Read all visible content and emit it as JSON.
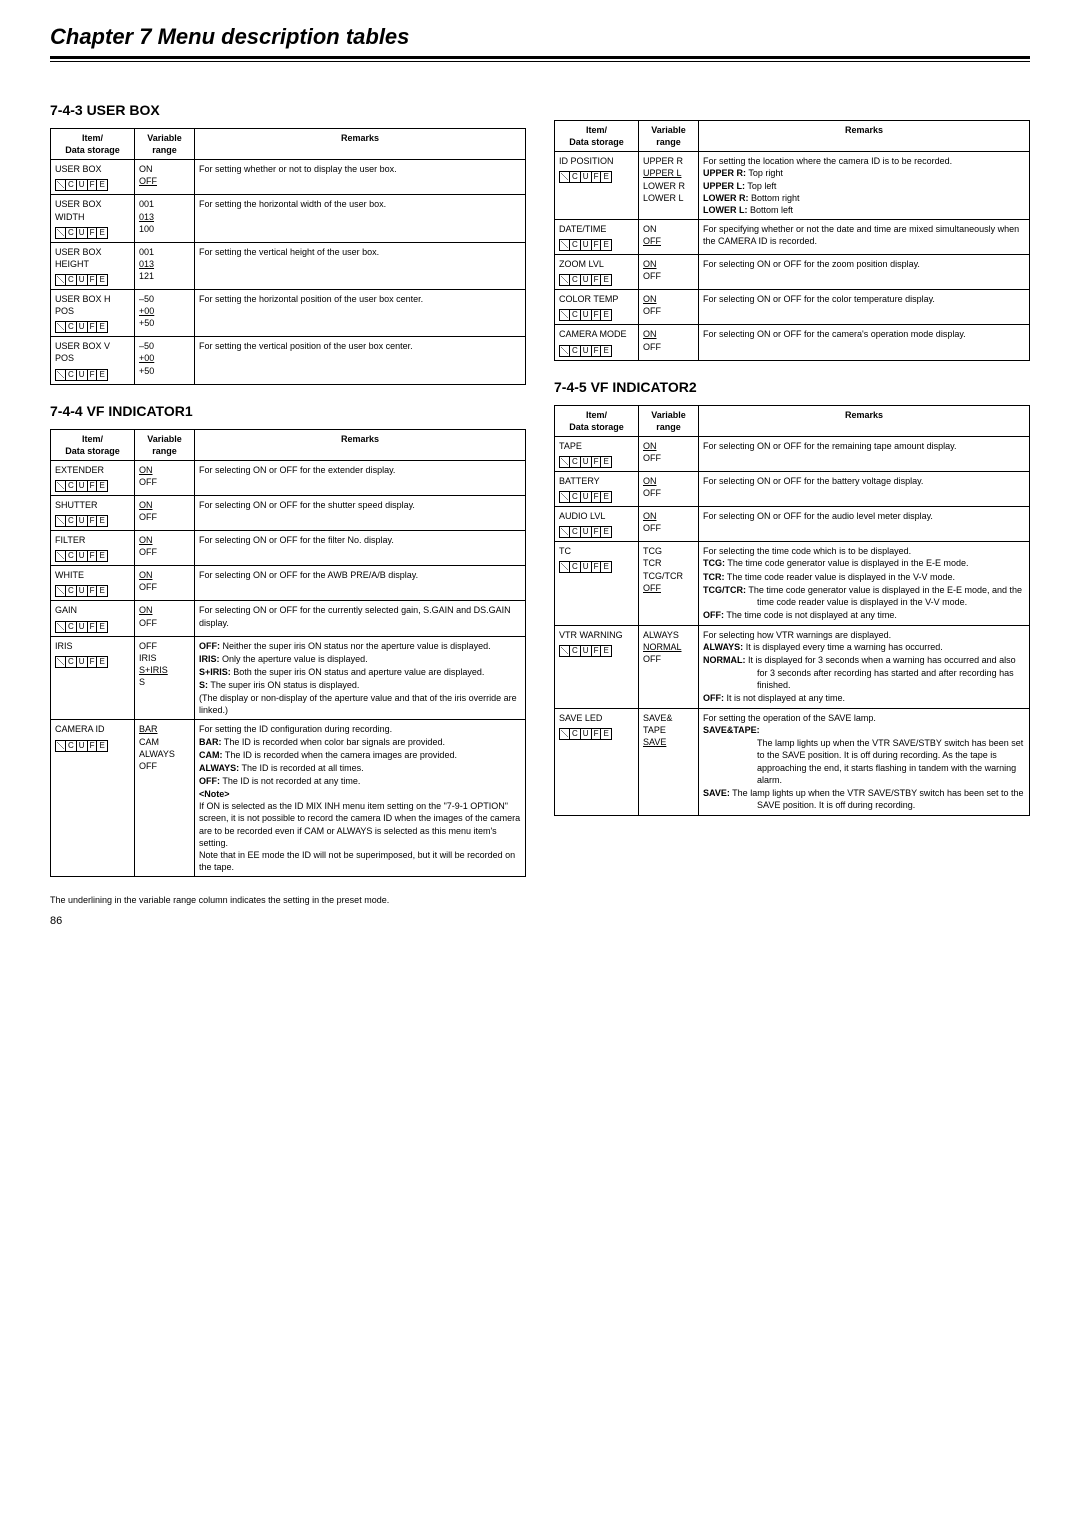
{
  "chapter_title": "Chapter 7  Menu description tables",
  "footnote": "The underlining in the variable range column indicates the setting in the preset mode.",
  "page_number": "86",
  "headers": {
    "item": "Item/\nData storage",
    "variable": "Variable\nrange",
    "remarks": "Remarks"
  },
  "s743": {
    "title": "7-4-3 USER BOX",
    "rows": [
      {
        "item": "USER BOX",
        "cufe": true,
        "var": "ON\n<u>OFF</u>",
        "remarks": "For setting whether or not to display the user box."
      },
      {
        "item": "USER BOX WIDTH",
        "cufe": true,
        "var": "001\n<u>013</u>\n100",
        "remarks": "For setting the horizontal width of the user box."
      },
      {
        "item": "USER BOX HEIGHT",
        "cufe": true,
        "var": "001\n<u>013</u>\n121",
        "remarks": "For setting the vertical height of the user box."
      },
      {
        "item": "USER BOX H POS",
        "cufe": true,
        "var": "–50\n<u>+00</u>\n+50",
        "remarks": "For setting the horizontal position of the user box center."
      },
      {
        "item": "USER BOX V POS",
        "cufe": true,
        "var": "–50\n<u>+00</u>\n+50",
        "remarks": "For setting the vertical position of the user box center."
      }
    ]
  },
  "s744": {
    "title": "7-4-4 VF INDICATOR1",
    "rows": [
      {
        "item": "EXTENDER",
        "cufe": true,
        "var": "<u>ON</u>\nOFF",
        "remarks": "For selecting ON or OFF for the extender display."
      },
      {
        "item": "SHUTTER",
        "cufe": true,
        "var": "<u>ON</u>\nOFF",
        "remarks": "For selecting ON or OFF for the shutter speed display."
      },
      {
        "item": "FILTER",
        "cufe": true,
        "var": "<u>ON</u>\nOFF",
        "remarks": "For selecting ON or OFF for the filter No. display."
      },
      {
        "item": "WHITE",
        "cufe": true,
        "var": "<u>ON</u>\nOFF",
        "remarks": "For selecting ON or OFF for the AWB PRE/A/B display."
      },
      {
        "item": "GAIN",
        "cufe": true,
        "var": "<u>ON</u>\nOFF",
        "remarks": "For selecting ON or OFF for the currently selected gain, S.GAIN and DS.GAIN display."
      },
      {
        "item": "IRIS",
        "cufe": true,
        "var": "OFF\nIRIS\n<u>S+IRIS</u>\nS",
        "remarks_defs": [
          {
            "k": "OFF:",
            "v": "Neither the super iris ON status nor the aperture value is displayed."
          },
          {
            "k": "IRIS:",
            "v": "Only the aperture value is displayed."
          },
          {
            "k": "S+IRIS:",
            "v": "Both the super iris ON status and aperture value are displayed."
          },
          {
            "k": "S:",
            "v": "The super iris ON status is displayed."
          }
        ],
        "remarks_tail": "(The display or non-display of the aperture value and that of the iris override are linked.)"
      },
      {
        "item": "CAMERA ID",
        "cufe": true,
        "var": "<u>BAR</u>\nCAM\nALWAYS\nOFF",
        "remarks_lead": "For setting the ID configuration during recording.",
        "remarks_defs": [
          {
            "k": "BAR:",
            "v": "The ID is recorded when color bar signals are provided."
          },
          {
            "k": "CAM:",
            "v": "The ID is recorded when the camera images are provided."
          },
          {
            "k": "ALWAYS:",
            "v": "The ID is recorded at all times."
          },
          {
            "k": "OFF:",
            "v": "The ID is not recorded at any time."
          }
        ],
        "remarks_note": "<b>&lt;Note&gt;</b>\nIf ON is selected as the ID MIX INH menu item setting on the \"7-9-1 OPTION\" screen, it is not possible to record the camera ID when the images of the camera are to be recorded even if CAM or ALWAYS is selected as this menu item's setting.\nNote that in EE mode the ID will not be superimposed, but it will be recorded on the tape."
      }
    ]
  },
  "s744b": {
    "rows": [
      {
        "item": "ID POSITION",
        "cufe": true,
        "var": "UPPER R\n<u>UPPER L</u>\nLOWER R\nLOWER L",
        "remarks_lead": "For setting the location where the camera ID is to be recorded.",
        "remarks_defs2": [
          {
            "k": "UPPER R:",
            "v": "Top right"
          },
          {
            "k": "UPPER L:",
            "v": "Top left"
          },
          {
            "k": "LOWER R:",
            "v": "Bottom right"
          },
          {
            "k": "LOWER L:",
            "v": "Bottom left"
          }
        ]
      },
      {
        "item": "DATE/TIME",
        "cufe": true,
        "var": "ON\n<u>OFF</u>",
        "remarks": "For specifying whether or not the date and time are mixed simultaneously when the CAMERA ID is recorded."
      },
      {
        "item": "ZOOM LVL",
        "cufe": true,
        "var": "<u>ON</u>\nOFF",
        "remarks": "For selecting ON or OFF for the zoom position display."
      },
      {
        "item": "COLOR TEMP",
        "cufe": true,
        "var": "<u>ON</u>\nOFF",
        "remarks": "For selecting ON or OFF for the color temperature display."
      },
      {
        "item": "CAMERA MODE",
        "cufe": true,
        "var": "<u>ON</u>\nOFF",
        "remarks": "For selecting ON or OFF for the camera's operation mode display."
      }
    ]
  },
  "s745": {
    "title": "7-4-5 VF INDICATOR2",
    "rows": [
      {
        "item": "TAPE",
        "cufe": true,
        "var": "<u>ON</u>\nOFF",
        "remarks": "For selecting ON or OFF for the remaining tape amount display."
      },
      {
        "item": "BATTERY",
        "cufe": true,
        "var": "<u>ON</u>\nOFF",
        "remarks": "For selecting ON or OFF for the battery voltage display."
      },
      {
        "item": "AUDIO LVL",
        "cufe": true,
        "var": "<u>ON</u>\nOFF",
        "remarks": "For selecting ON or OFF for the audio level meter display."
      },
      {
        "item": "TC",
        "cufe": true,
        "var": "TCG\nTCR\nTCG/TCR\n<u>OFF</u>",
        "remarks_lead": "For selecting the time code which is to be displayed.",
        "remarks_defsL": [
          {
            "k": "TCG:",
            "v": "The time code generator value is displayed in the E-E mode."
          },
          {
            "k": "TCR:",
            "v": "The time code reader value is displayed in the V-V mode."
          },
          {
            "k": "TCG/TCR:",
            "v": "The time code generator value is displayed in the E-E mode, and the time code reader value is displayed in the V-V mode."
          },
          {
            "k": "OFF:",
            "v": "The time code is not displayed at any time."
          }
        ]
      },
      {
        "item": "VTR WARNING",
        "cufe": true,
        "var": "ALWAYS\n<u>NORMAL</u>\nOFF",
        "remarks_lead": "For selecting how VTR warnings are displayed.",
        "remarks_defsL": [
          {
            "k": "ALWAYS:",
            "v": "It is displayed every time a warning has occurred."
          },
          {
            "k": "NORMAL:",
            "v": "It is displayed for 3 seconds when a warning has occurred and also for 3 seconds after recording has started and after recording has finished."
          },
          {
            "k": "OFF:",
            "v": "It is not displayed at any time."
          }
        ]
      },
      {
        "item": "SAVE LED",
        "cufe": true,
        "var": "SAVE&\n    TAPE\n<u>SAVE</u>",
        "remarks_lead": "For setting the operation of the SAVE lamp.",
        "remarks_defsL": [
          {
            "k": "SAVE&TAPE:",
            "v": ""
          },
          {
            "k": "",
            "v": "The lamp lights up when the VTR SAVE/STBY switch has been set to the SAVE position. It is off during recording. As the tape is approaching the end, it starts flashing in tandem with the warning alarm."
          },
          {
            "k": "SAVE:",
            "v": "The lamp lights up when the VTR SAVE/STBY switch has been set to the SAVE position. It is off during recording."
          }
        ]
      }
    ]
  }
}
